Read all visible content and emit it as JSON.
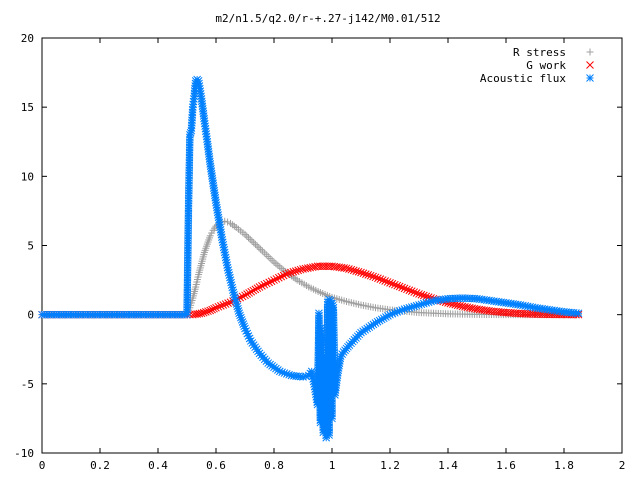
{
  "chart_data": {
    "type": "scatter",
    "title": "m2/n1.5/q2.0/r-+.27-j142/M0.01/512",
    "xlabel": "",
    "ylabel": "",
    "xlim": [
      0,
      2
    ],
    "ylim": [
      -10,
      20
    ],
    "x_ticks": [
      0,
      0.2,
      0.4,
      0.6,
      0.8,
      1,
      1.2,
      1.4,
      1.6,
      1.8,
      2
    ],
    "x_tick_labels": [
      "0",
      "0.2",
      "0.4",
      "0.6",
      "0.8",
      "1",
      "1.2",
      "1.4",
      "1.6",
      "1.8",
      "2"
    ],
    "y_ticks": [
      -10,
      -5,
      0,
      5,
      10,
      15,
      20
    ],
    "y_tick_labels": [
      "-10",
      "-5",
      "0",
      "5",
      "10",
      "15",
      "20"
    ],
    "grid": false,
    "legend_position": "top-right",
    "series": [
      {
        "name": "R stress",
        "marker": "plus",
        "color": "#a0a0a0",
        "points": [
          [
            0.0,
            0
          ],
          [
            0.1,
            0
          ],
          [
            0.2,
            0
          ],
          [
            0.3,
            0
          ],
          [
            0.4,
            0
          ],
          [
            0.5,
            0
          ],
          [
            0.51,
            0.5
          ],
          [
            0.52,
            1.2
          ],
          [
            0.53,
            2.0
          ],
          [
            0.54,
            2.9
          ],
          [
            0.55,
            3.7
          ],
          [
            0.56,
            4.5
          ],
          [
            0.57,
            5.1
          ],
          [
            0.58,
            5.7
          ],
          [
            0.59,
            6.1
          ],
          [
            0.6,
            6.4
          ],
          [
            0.61,
            6.6
          ],
          [
            0.62,
            6.7
          ],
          [
            0.63,
            6.75
          ],
          [
            0.64,
            6.7
          ],
          [
            0.65,
            6.6
          ],
          [
            0.67,
            6.3
          ],
          [
            0.7,
            5.8
          ],
          [
            0.73,
            5.2
          ],
          [
            0.76,
            4.6
          ],
          [
            0.8,
            3.8
          ],
          [
            0.84,
            3.1
          ],
          [
            0.88,
            2.5
          ],
          [
            0.92,
            2.0
          ],
          [
            0.96,
            1.6
          ],
          [
            1.0,
            1.25
          ],
          [
            1.05,
            0.95
          ],
          [
            1.1,
            0.7
          ],
          [
            1.15,
            0.5
          ],
          [
            1.2,
            0.35
          ],
          [
            1.3,
            0.15
          ],
          [
            1.4,
            0.06
          ],
          [
            1.5,
            0.02
          ],
          [
            1.6,
            0.0
          ],
          [
            1.7,
            0.0
          ],
          [
            1.8,
            0.0
          ],
          [
            1.85,
            0.0
          ]
        ]
      },
      {
        "name": "G work",
        "marker": "cross",
        "color": "#ff0000",
        "points": [
          [
            0.0,
            0
          ],
          [
            0.1,
            0
          ],
          [
            0.2,
            0
          ],
          [
            0.3,
            0
          ],
          [
            0.4,
            0
          ],
          [
            0.5,
            0
          ],
          [
            0.52,
            0.0
          ],
          [
            0.55,
            0.1
          ],
          [
            0.58,
            0.3
          ],
          [
            0.6,
            0.5
          ],
          [
            0.65,
            0.9
          ],
          [
            0.7,
            1.4
          ],
          [
            0.75,
            2.0
          ],
          [
            0.8,
            2.5
          ],
          [
            0.85,
            3.0
          ],
          [
            0.9,
            3.3
          ],
          [
            0.95,
            3.5
          ],
          [
            1.0,
            3.5
          ],
          [
            1.05,
            3.35
          ],
          [
            1.1,
            3.05
          ],
          [
            1.15,
            2.7
          ],
          [
            1.2,
            2.3
          ],
          [
            1.25,
            1.9
          ],
          [
            1.3,
            1.5
          ],
          [
            1.35,
            1.15
          ],
          [
            1.4,
            0.85
          ],
          [
            1.45,
            0.6
          ],
          [
            1.5,
            0.4
          ],
          [
            1.55,
            0.25
          ],
          [
            1.6,
            0.15
          ],
          [
            1.65,
            0.08
          ],
          [
            1.7,
            0.04
          ],
          [
            1.75,
            0.02
          ],
          [
            1.8,
            0.01
          ],
          [
            1.85,
            0.0
          ]
        ]
      },
      {
        "name": "Acoustic flux",
        "marker": "star",
        "color": "#0080ff",
        "points": [
          [
            0.0,
            0
          ],
          [
            0.1,
            0
          ],
          [
            0.2,
            0
          ],
          [
            0.3,
            0
          ],
          [
            0.4,
            0
          ],
          [
            0.5,
            0
          ],
          [
            0.505,
            7.5
          ],
          [
            0.51,
            13.0
          ],
          [
            0.515,
            13.3
          ],
          [
            0.52,
            15.0
          ],
          [
            0.525,
            15.8
          ],
          [
            0.53,
            16.9
          ],
          [
            0.535,
            17.0
          ],
          [
            0.54,
            16.9
          ],
          [
            0.55,
            15.6
          ],
          [
            0.56,
            14.0
          ],
          [
            0.57,
            12.5
          ],
          [
            0.58,
            10.9
          ],
          [
            0.59,
            9.5
          ],
          [
            0.6,
            8.1
          ],
          [
            0.62,
            5.6
          ],
          [
            0.64,
            3.4
          ],
          [
            0.66,
            1.6
          ],
          [
            0.68,
            0.1
          ],
          [
            0.7,
            -1.0
          ],
          [
            0.72,
            -1.9
          ],
          [
            0.75,
            -2.8
          ],
          [
            0.78,
            -3.5
          ],
          [
            0.82,
            -4.1
          ],
          [
            0.86,
            -4.4
          ],
          [
            0.9,
            -4.5
          ],
          [
            0.92,
            -4.4
          ],
          [
            0.93,
            -4.1
          ],
          [
            0.94,
            -5.2
          ],
          [
            0.95,
            -6.5
          ],
          [
            0.96,
            -7.8
          ],
          [
            0.97,
            -8.5
          ],
          [
            0.98,
            -8.9
          ],
          [
            0.99,
            -8.7
          ],
          [
            1.0,
            -7.5
          ],
          [
            1.01,
            -5.8
          ],
          [
            1.02,
            -4.2
          ],
          [
            1.03,
            -3.0
          ],
          [
            1.04,
            -2.7
          ],
          [
            1.06,
            -2.2
          ],
          [
            1.1,
            -1.3
          ],
          [
            1.15,
            -0.6
          ],
          [
            1.2,
            0.0
          ],
          [
            1.25,
            0.4
          ],
          [
            1.3,
            0.7
          ],
          [
            1.35,
            1.0
          ],
          [
            1.4,
            1.15
          ],
          [
            1.45,
            1.2
          ],
          [
            1.5,
            1.15
          ],
          [
            1.55,
            1.0
          ],
          [
            1.6,
            0.85
          ],
          [
            1.65,
            0.7
          ],
          [
            1.7,
            0.5
          ],
          [
            1.75,
            0.35
          ],
          [
            1.8,
            0.2
          ],
          [
            1.85,
            0.1
          ],
          [
            0.955,
            0.1
          ],
          [
            0.96,
            -1.0
          ],
          [
            0.965,
            -2.0
          ],
          [
            0.97,
            -3.0
          ],
          [
            0.975,
            -3.5
          ],
          [
            0.985,
            0.9
          ],
          [
            0.99,
            1.1
          ],
          [
            0.995,
            1.0
          ],
          [
            1.0,
            0.8
          ],
          [
            1.005,
            0.5
          ]
        ]
      }
    ]
  }
}
